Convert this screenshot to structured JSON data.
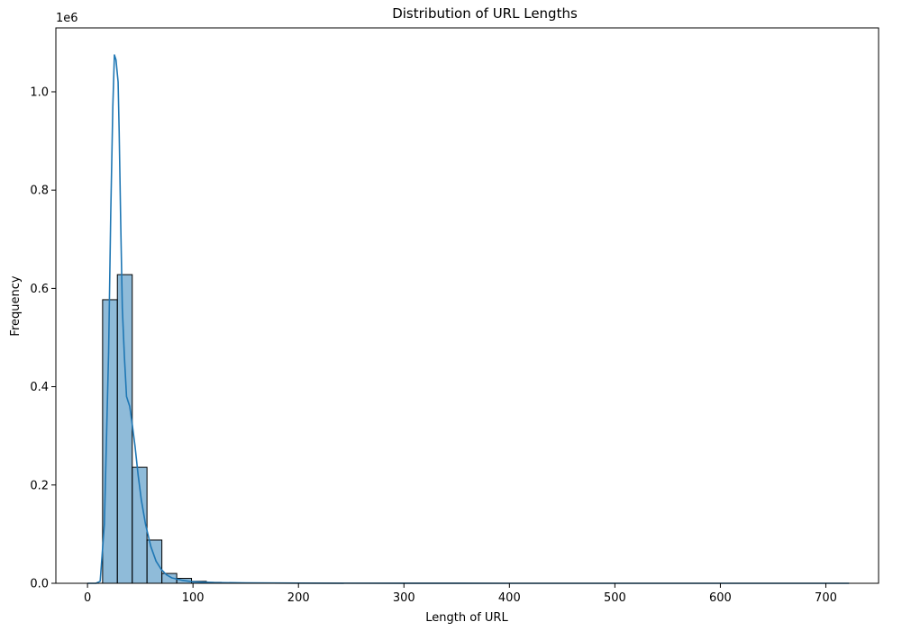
{
  "chart_data": {
    "type": "bar",
    "title": "Distribution of URL Lengths",
    "xlabel": "Length of URL",
    "ylabel": "Frequency",
    "y_offset_label": "1e6",
    "xlim": [
      -30,
      750
    ],
    "ylim": [
      0,
      1.13
    ],
    "x_ticks": [
      0,
      100,
      200,
      300,
      400,
      500,
      600,
      700
    ],
    "y_ticks": [
      0.0,
      0.2,
      0.4,
      0.6,
      0.8,
      1.0
    ],
    "y_tick_labels": [
      "0.0",
      "0.2",
      "0.4",
      "0.6",
      "0.8",
      "1.0"
    ],
    "bar_edges": [
      14.3,
      28.3,
      42.4,
      56.4,
      70.5,
      84.6,
      98.6,
      112.7,
      126.7,
      140.8,
      154.8
    ],
    "values": [
      0.577,
      0.628,
      0.236,
      0.088,
      0.02,
      0.01,
      0.004,
      0.002,
      0.001,
      0.0005
    ],
    "series": [
      {
        "name": "",
        "kde_x": [
          0,
          8,
          12,
          16,
          20,
          22,
          24,
          25.5,
          27,
          29,
          30,
          31.5,
          33,
          35,
          37,
          38.5,
          40,
          42,
          45,
          48,
          51,
          55,
          60,
          65,
          70,
          75,
          80,
          90,
          100,
          120,
          150,
          200,
          300,
          400,
          500,
          600,
          722
        ],
        "kde_y": [
          0,
          0,
          0.004,
          0.12,
          0.47,
          0.75,
          0.97,
          1.075,
          1.065,
          1.02,
          0.92,
          0.73,
          0.56,
          0.46,
          0.38,
          0.37,
          0.36,
          0.33,
          0.28,
          0.22,
          0.17,
          0.12,
          0.075,
          0.045,
          0.028,
          0.017,
          0.011,
          0.006,
          0.003,
          0.0015,
          0.0008,
          0.0003,
          0.0001,
          0,
          0,
          0,
          0
        ]
      }
    ],
    "colors": {
      "bar_fill": "#1f77b4",
      "bar_fill_opacity": 0.5,
      "bar_edge": "#000000",
      "line": "#1f77b4"
    },
    "grid": false,
    "legend": "none"
  }
}
